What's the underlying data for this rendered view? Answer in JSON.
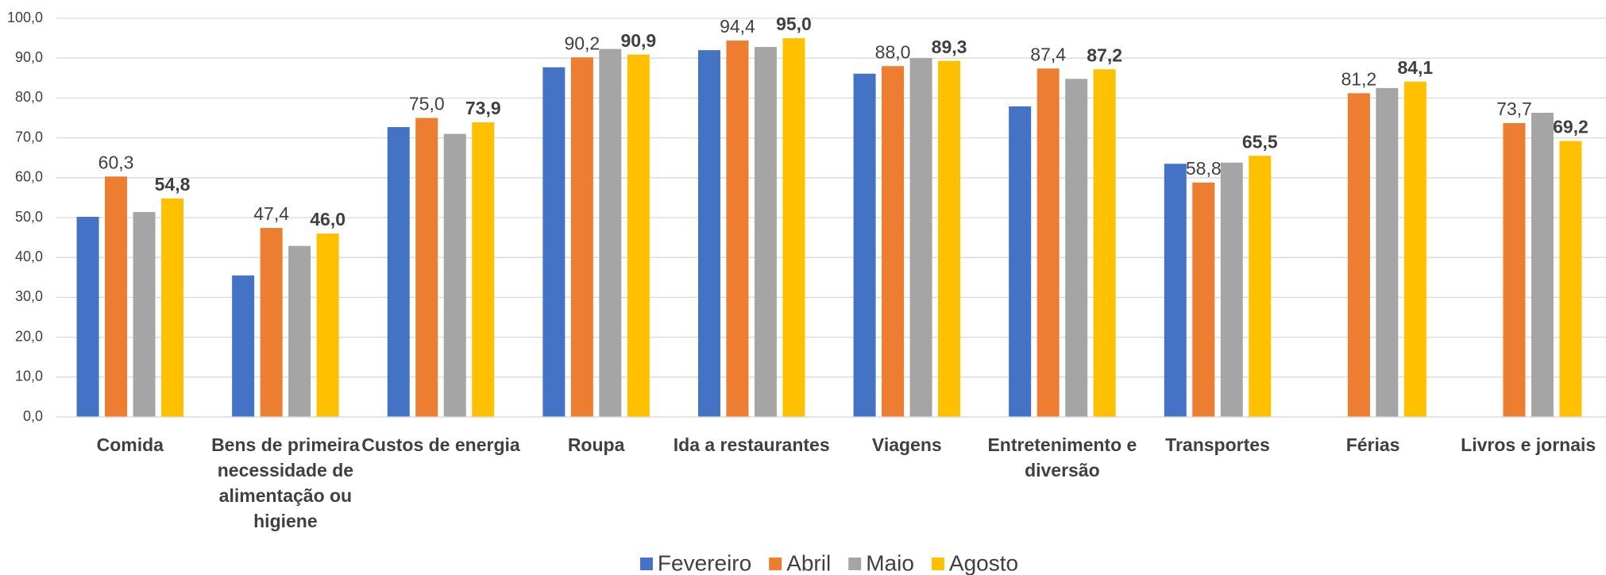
{
  "chart_data": {
    "type": "bar",
    "categories": [
      "Comida",
      "Bens de primeira necessidade de alimentação ou higiene",
      "Custos de energia",
      "Roupa",
      "Ida a restaurantes",
      "Viagens",
      "Entretenimento e diversão",
      "Transportes",
      "Férias",
      "Livros e jornais"
    ],
    "series": [
      {
        "name": "Fevereiro",
        "color": "#4472c4",
        "values": [
          50.2,
          35.5,
          72.7,
          87.7,
          92.0,
          86.1,
          77.9,
          63.5,
          null,
          null
        ]
      },
      {
        "name": "Abril",
        "color": "#ed7d31",
        "values": [
          60.3,
          47.4,
          75.0,
          90.2,
          94.4,
          88.0,
          87.4,
          58.8,
          81.2,
          73.7
        ],
        "value_labels": [
          "60,3",
          "47,4",
          "75,0",
          "90,2",
          "94,4",
          "88,0",
          "87,4",
          "58,8",
          "81,2",
          "73,7"
        ]
      },
      {
        "name": "Maio",
        "color": "#a5a5a5",
        "values": [
          51.4,
          42.9,
          71.0,
          92.3,
          92.8,
          90.0,
          84.8,
          63.8,
          82.5,
          76.3
        ]
      },
      {
        "name": "Agosto",
        "color": "#ffc000",
        "bold": true,
        "values": [
          54.8,
          46.0,
          73.9,
          90.9,
          95.0,
          89.3,
          87.2,
          65.5,
          84.1,
          69.2
        ],
        "value_labels": [
          "54,8",
          "46,0",
          "73,9",
          "90,9",
          "95,0",
          "89,3",
          "87,2",
          "65,5",
          "84,1",
          "69,2"
        ]
      }
    ],
    "ylim": [
      0,
      100
    ],
    "yticks": [
      {
        "value": 0,
        "label": "0,0"
      },
      {
        "value": 10,
        "label": "10,0"
      },
      {
        "value": 20,
        "label": "20,0"
      },
      {
        "value": 30,
        "label": "30,0"
      },
      {
        "value": 40,
        "label": "40,0"
      },
      {
        "value": 50,
        "label": "50,0"
      },
      {
        "value": 60,
        "label": "60,0"
      },
      {
        "value": 70,
        "label": "70,0"
      },
      {
        "value": 80,
        "label": "80,0"
      },
      {
        "value": 90,
        "label": "90,0"
      },
      {
        "value": 100,
        "label": "100,0"
      }
    ],
    "grid": true,
    "legend": "bottom"
  }
}
